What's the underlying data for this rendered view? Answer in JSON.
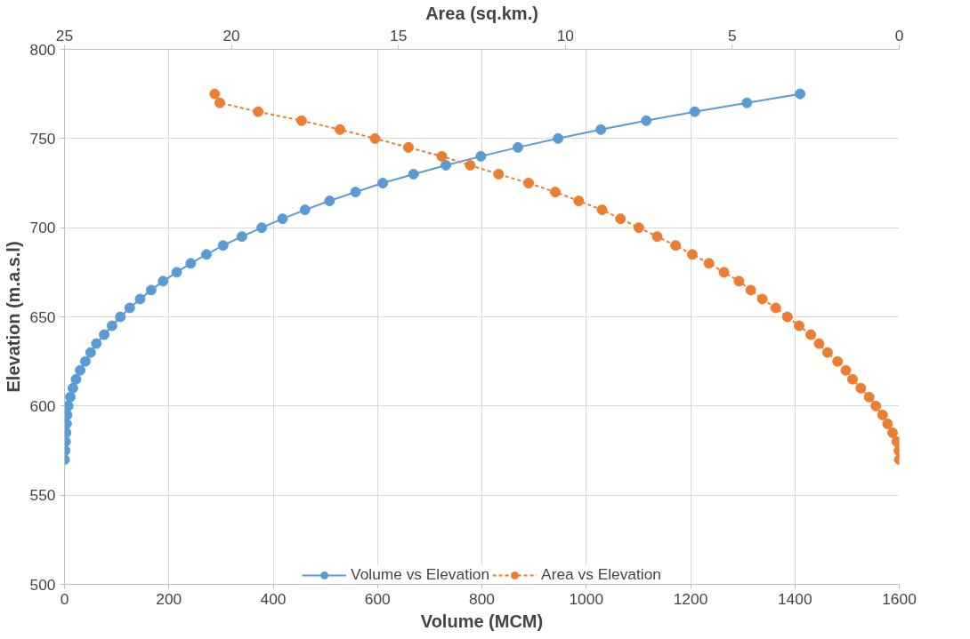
{
  "chart_data": {
    "type": "line",
    "xlabel": "Volume (MCM)",
    "x2label": "Area (sq.km.)",
    "ylabel": "Elevation (m.a.s.l)",
    "xlim": [
      0,
      1600
    ],
    "xticks": [
      0,
      200,
      400,
      600,
      800,
      1000,
      1200,
      1400,
      1600
    ],
    "x2lim": [
      25,
      0
    ],
    "x2ticks": [
      25,
      20,
      15,
      10,
      5,
      0
    ],
    "ylim": [
      500,
      800
    ],
    "yticks": [
      500,
      550,
      600,
      650,
      700,
      750,
      800
    ],
    "grid": true,
    "legend": "bottom",
    "marker": "circle",
    "series": [
      {
        "name": "Volume vs Elevation",
        "color": "#5b9bd5",
        "line_style": "solid",
        "x": [
          1410,
          1308,
          1208,
          1115,
          1028,
          946,
          869,
          798,
          731,
          669,
          610,
          558,
          508,
          461,
          418,
          378,
          340,
          304,
          272,
          242,
          215,
          189,
          166,
          145,
          125,
          107,
          91,
          76,
          61,
          50,
          40,
          30,
          22,
          16,
          11,
          7,
          5,
          4,
          3,
          2,
          1,
          0
        ],
        "values": [
          775,
          770,
          765,
          760,
          755,
          750,
          745,
          740,
          735,
          730,
          725,
          720,
          715,
          710,
          705,
          700,
          695,
          690,
          685,
          680,
          675,
          670,
          665,
          660,
          655,
          650,
          645,
          640,
          635,
          630,
          625,
          620,
          615,
          610,
          605,
          600,
          595,
          590,
          585,
          580,
          575,
          570
        ]
      },
      {
        "name": "Area vs Elevation",
        "color": "#ed7d31",
        "line_style": "dashed",
        "axis": "x2",
        "x": [
          20.5,
          20.35,
          19.2,
          17.9,
          16.75,
          15.7,
          14.7,
          13.7,
          12.85,
          12.0,
          11.1,
          10.3,
          9.6,
          8.9,
          8.35,
          7.8,
          7.25,
          6.7,
          6.2,
          5.7,
          5.25,
          4.8,
          4.45,
          4.1,
          3.7,
          3.35,
          3.0,
          2.65,
          2.4,
          2.15,
          1.85,
          1.6,
          1.4,
          1.15,
          0.9,
          0.7,
          0.5,
          0.35,
          0.2,
          0.07,
          0.01,
          0
        ],
        "values": [
          775,
          770,
          765,
          760,
          755,
          750,
          745,
          740,
          735,
          730,
          725,
          720,
          715,
          710,
          705,
          700,
          695,
          690,
          685,
          680,
          675,
          670,
          665,
          660,
          655,
          650,
          645,
          640,
          635,
          630,
          625,
          620,
          615,
          610,
          605,
          600,
          595,
          590,
          585,
          580,
          575,
          570
        ]
      }
    ]
  }
}
